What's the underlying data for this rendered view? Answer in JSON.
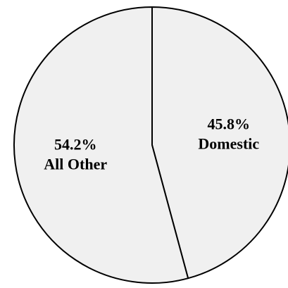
{
  "chart_data": {
    "type": "pie",
    "title": "",
    "start_angle_deg": 0,
    "direction": "clockwise",
    "slices": [
      {
        "name": "Domestic",
        "value": 45.8,
        "label_value": "45.8%",
        "label_name": "Domestic",
        "color": "#f0f0f0"
      },
      {
        "name": "All Other",
        "value": 54.2,
        "label_value": "54.2%",
        "label_name": "All Other",
        "color": "#f0f0f0"
      }
    ],
    "legend": "none",
    "outline_color": "#000000"
  }
}
